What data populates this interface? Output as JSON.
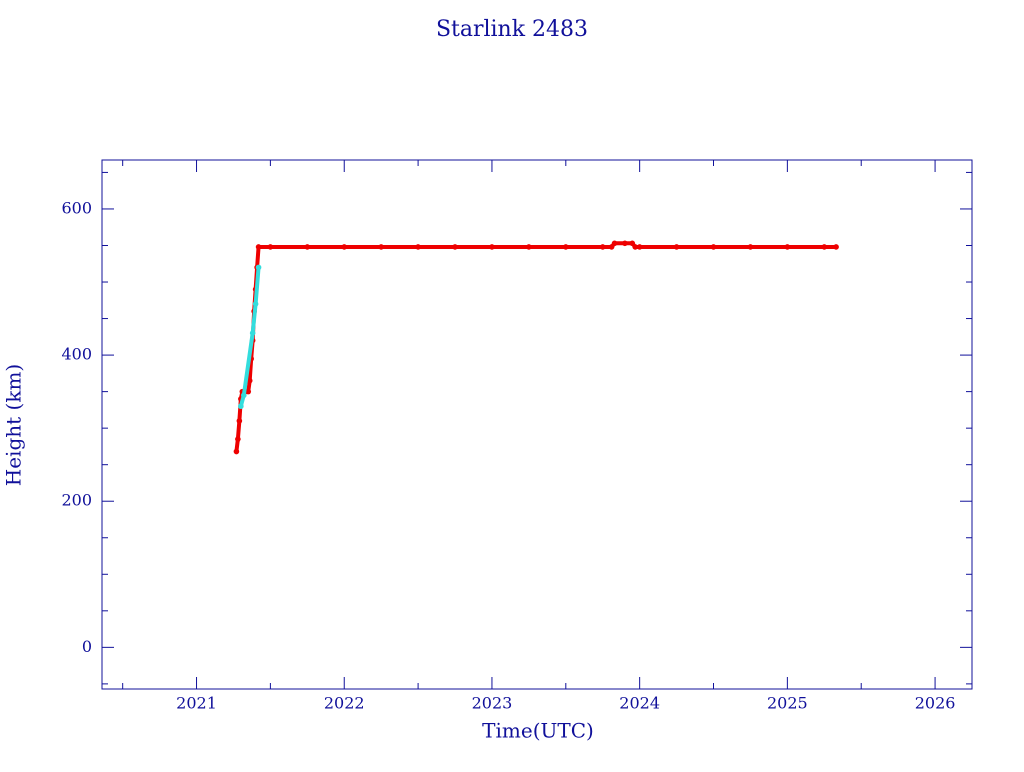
{
  "chart_data": {
    "type": "line",
    "title": "Starlink 2483",
    "x_label": "Time(UTC)",
    "y_label": "Height (km)",
    "xlim": [
      2020.36,
      2026.25
    ],
    "xticks": [
      2021,
      2022,
      2023,
      2024,
      2025,
      2026
    ],
    "xminorticks": [
      2020.5,
      2021.5,
      2022.5,
      2023.5,
      2024.5,
      2025.5
    ],
    "ylim": [
      -57,
      667
    ],
    "yticks": [
      0,
      200,
      400,
      600
    ],
    "yminorticks": [
      -50,
      50,
      100,
      150,
      250,
      300,
      350,
      450,
      500,
      550,
      650
    ],
    "series": [
      {
        "color": "#ee0000",
        "x": [
          2021.27,
          2021.28,
          2021.29,
          2021.3,
          2021.31,
          2021.33,
          2021.35,
          2021.36,
          2021.37,
          2021.38,
          2021.39,
          2021.4,
          2021.41,
          2021.42,
          2021.5,
          2021.75,
          2022.0,
          2022.25,
          2022.5,
          2022.75,
          2023.0,
          2023.25,
          2023.5,
          2023.75,
          2023.81,
          2023.83,
          2023.9,
          2023.95,
          2023.97,
          2024.0,
          2024.25,
          2024.5,
          2024.75,
          2025.0,
          2025.25,
          2025.33
        ],
        "values": [
          268,
          285,
          310,
          340,
          350,
          350,
          350,
          365,
          395,
          420,
          460,
          490,
          520,
          548,
          548,
          548,
          548,
          548,
          548,
          548,
          548,
          548,
          548,
          548,
          548,
          553,
          553,
          553,
          548,
          548,
          548,
          548,
          548,
          548,
          548,
          548
        ]
      },
      {
        "color": "#33dddd",
        "x": [
          2021.3,
          2021.32,
          2021.38,
          2021.4,
          2021.42
        ],
        "values": [
          330,
          345,
          430,
          470,
          520
        ]
      }
    ]
  }
}
